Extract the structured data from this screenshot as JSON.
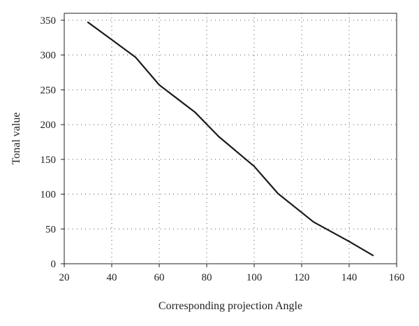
{
  "chart_data": {
    "type": "line",
    "title": "",
    "xlabel": "Corresponding projection Angle",
    "ylabel": "Tonal value",
    "xlim": [
      20,
      160
    ],
    "ylim": [
      0,
      360
    ],
    "xticks": [
      "20",
      "40",
      "60",
      "80",
      "100",
      "120",
      "140",
      "160"
    ],
    "yticks": [
      "0",
      "50",
      "100",
      "150",
      "200",
      "250",
      "300",
      "350"
    ],
    "grid": "dotted",
    "legend": "none",
    "line_color": "#1a1a1a",
    "series": [
      {
        "x": [
          30,
          40,
          50,
          60,
          75,
          85,
          100,
          110,
          125,
          140,
          150
        ],
        "y": [
          347,
          322,
          297,
          257,
          218,
          183,
          140,
          101,
          60,
          32,
          12
        ]
      }
    ]
  }
}
